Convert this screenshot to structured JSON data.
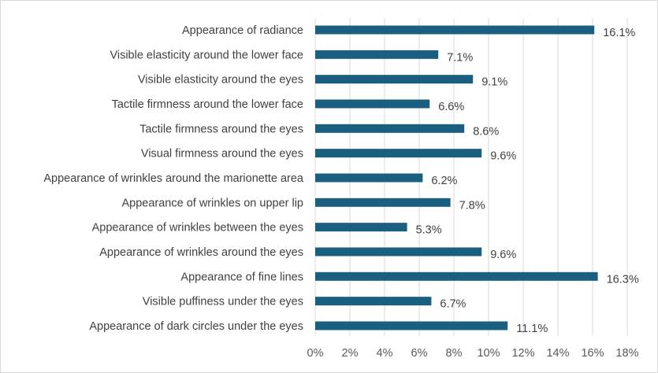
{
  "chart_data": {
    "type": "bar",
    "orientation": "horizontal",
    "categories": [
      "Appearance of radiance",
      "Visible elasticity around the lower face",
      "Visible elasticity around the eyes",
      "Tactile firmness around the lower face",
      "Tactile firmness around the eyes",
      "Visual firmness around the eyes",
      "Appearance of wrinkles around the marionette area",
      "Appearance of wrinkles on upper lip",
      "Appearance of wrinkles between the eyes",
      "Appearance of wrinkles around the eyes",
      "Appearance of fine lines",
      "Visible puffiness under the eyes",
      "Appearance of dark circles under the eyes"
    ],
    "values": [
      16.1,
      7.1,
      9.1,
      6.6,
      8.6,
      9.6,
      6.2,
      7.8,
      5.3,
      9.6,
      16.3,
      6.7,
      11.1
    ],
    "value_labels": [
      "16.1%",
      "7.1%",
      "9.1%",
      "6.6%",
      "8.6%",
      "9.6%",
      "6.2%",
      "7.8%",
      "5.3%",
      "9.6%",
      "16.3%",
      "6.7%",
      "11.1%"
    ],
    "xlim": [
      0,
      18
    ],
    "x_ticks": [
      0,
      2,
      4,
      6,
      8,
      10,
      12,
      14,
      16,
      18
    ],
    "x_tick_labels": [
      "0%",
      "2%",
      "4%",
      "6%",
      "8%",
      "10%",
      "12%",
      "14%",
      "16%",
      "18%"
    ],
    "title": "",
    "xlabel": "",
    "ylabel": "",
    "grid": "vertical",
    "legend": "none",
    "bar_color": "#1a5f80",
    "grid_color": "#d9d9d9"
  }
}
